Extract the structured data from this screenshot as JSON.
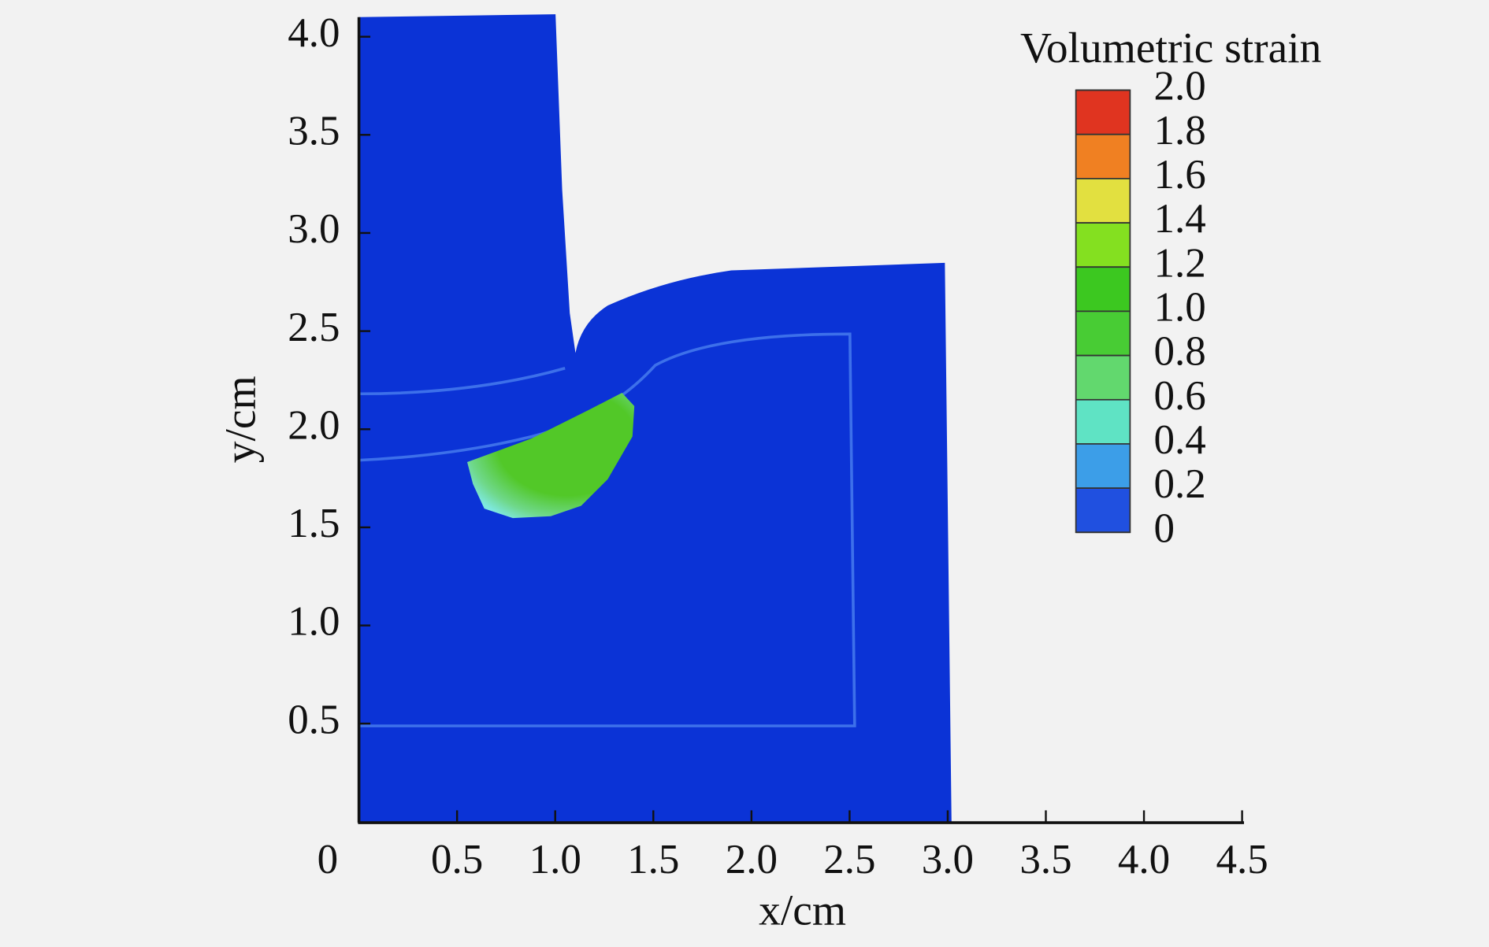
{
  "chart_data": {
    "type": "contour",
    "x_label": "x/cm",
    "y_label": "y/cm",
    "xlim": [
      0,
      4.5
    ],
    "ylim": [
      0,
      4.1
    ],
    "xticks": [
      0,
      0.5,
      {
        "value": 1,
        "label": "1.0"
      },
      1.5,
      {
        "value": 2,
        "label": "2.0"
      },
      2.5,
      {
        "value": 3,
        "label": "3.0"
      },
      3.5,
      {
        "value": 4,
        "label": "4.0"
      },
      4.5
    ],
    "yticks": [
      0.5,
      {
        "value": 1,
        "label": "1.0"
      },
      1.5,
      {
        "value": 2,
        "label": "2.0"
      },
      2.5,
      {
        "value": 3,
        "label": "3.0"
      },
      3.5,
      {
        "value": 4,
        "label": "4.0"
      }
    ],
    "colorbar": {
      "title": "Volumetric strain",
      "ticks": [
        0,
        0.2,
        0.4,
        0.6,
        0.8,
        {
          "value": 1,
          "label": "1.0"
        },
        1.2,
        1.4,
        1.6,
        1.8,
        {
          "value": 2,
          "label": "2.0"
        }
      ],
      "colors": [
        "#2050e0",
        "#3c9ee8",
        "#5fe3c4",
        "#62d86e",
        "#48cc34",
        "#3cc820",
        "#84e020",
        "#e2e040",
        "#f08022",
        "#e03420"
      ]
    }
  }
}
